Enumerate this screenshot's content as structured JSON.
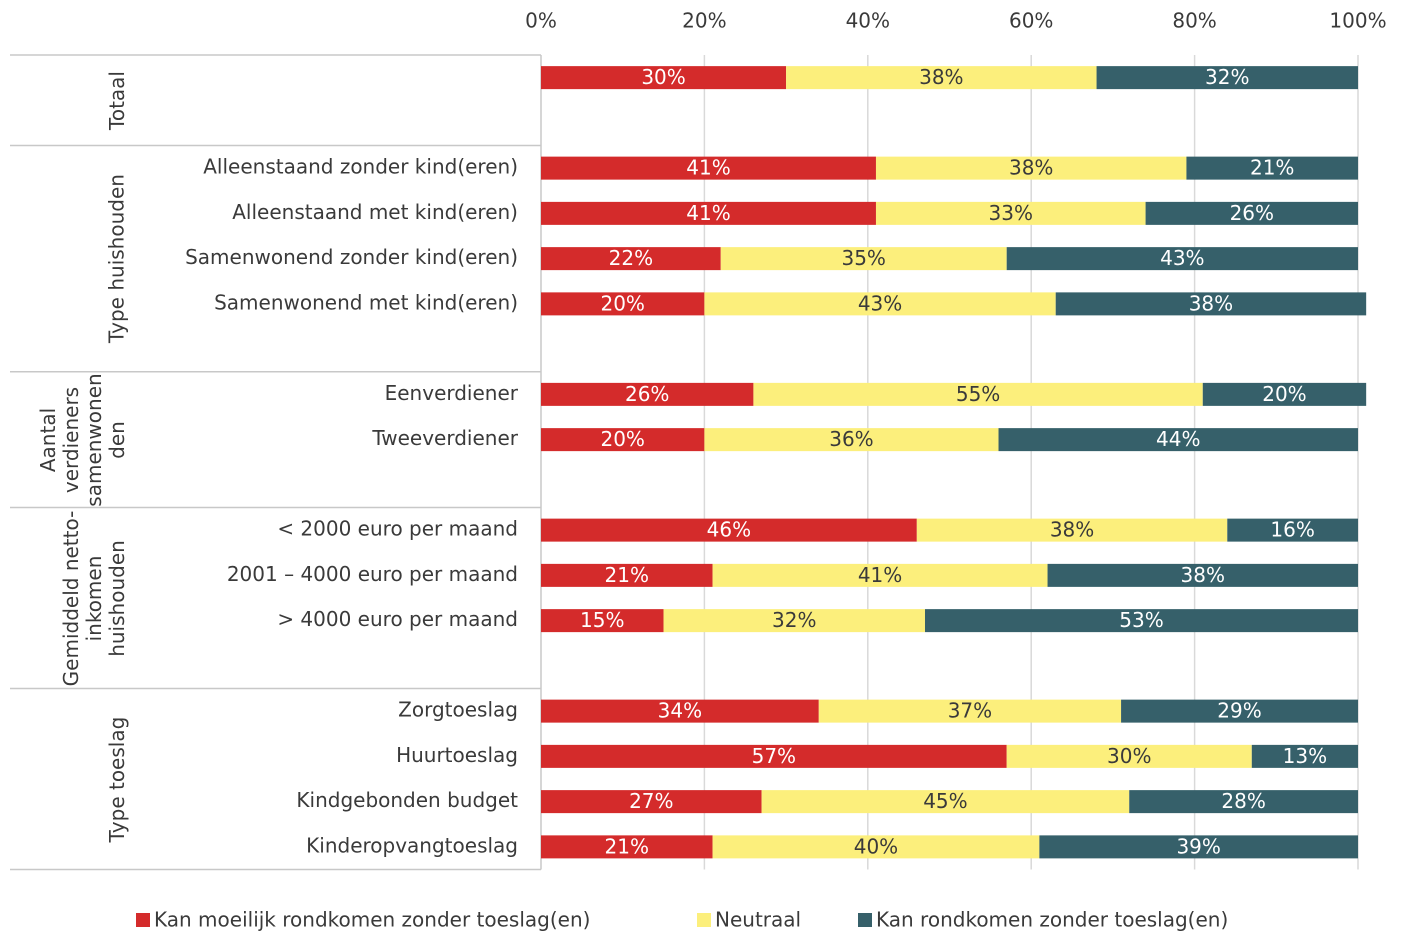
{
  "chart_data": {
    "type": "stacked-bar-horizontal",
    "groups": [
      {
        "name": "Totaal",
        "categories": [
          null
        ]
      },
      {
        "name": "Type huishouden",
        "categories": [
          "Alleenstaand zonder kind(eren)",
          "Alleenstaand met kind(eren)",
          "Samenwonend zonder kind(eren)",
          "Samenwonend met kind(eren)"
        ]
      },
      {
        "name": "Aantal verdieners samenwonenden",
        "categories": [
          "Eenverdiener",
          "Tweeverdiener"
        ]
      },
      {
        "name": "Gemiddeld netto-inkomen huishouden",
        "categories": [
          "< 2000 euro per maand",
          "2001 – 4000 euro per maand",
          "> 4000 euro per maand"
        ]
      },
      {
        "name": "Type toeslag",
        "categories": [
          "Zorgtoeslag",
          "Huurtoeslag",
          "Kindgebonden budget",
          "Kinderopvangtoeslag"
        ]
      }
    ],
    "series": [
      {
        "name": "Kan moeilijk rondkomen zonder toeslag(en)",
        "color": "#d42b2b",
        "values": [
          30,
          41,
          41,
          22,
          20,
          26,
          20,
          46,
          21,
          15,
          34,
          57,
          27,
          21
        ],
        "value_labels": [
          "30%",
          "41%",
          "41%",
          "22%",
          "20%",
          "26%",
          "20%",
          "46%",
          "21%",
          "15%",
          "34%",
          "57%",
          "27%",
          "21%"
        ]
      },
      {
        "name": "Neutraal",
        "color": "#fcef7c",
        "values": [
          38,
          38,
          33,
          35,
          43,
          55,
          36,
          38,
          41,
          32,
          37,
          30,
          45,
          40
        ],
        "value_labels": [
          "38%",
          "38%",
          "33%",
          "35%",
          "43%",
          "55%",
          "36%",
          "38%",
          "41%",
          "32%",
          "37%",
          "30%",
          "45%",
          "40%"
        ]
      },
      {
        "name": "Kan rondkomen zonder toeslag(en)",
        "color": "#36606a",
        "values": [
          32,
          21,
          26,
          43,
          38,
          20,
          44,
          16,
          38,
          53,
          29,
          13,
          28,
          39
        ],
        "value_labels": [
          "32%",
          "21%",
          "26%",
          "43%",
          "38%",
          "20%",
          "44%",
          "16%",
          "38%",
          "53%",
          "29%",
          "13%",
          "28%",
          "39%"
        ]
      }
    ],
    "xlim": [
      0,
      100
    ],
    "xticks": [
      {
        "value": 0,
        "label": "0%"
      },
      {
        "value": 20,
        "label": "20%"
      },
      {
        "value": 40,
        "label": "40%"
      },
      {
        "value": 60,
        "label": "60%"
      },
      {
        "value": 80,
        "label": "80%"
      },
      {
        "value": 100,
        "label": "100%"
      }
    ],
    "grid": true,
    "legend": "bottom"
  }
}
